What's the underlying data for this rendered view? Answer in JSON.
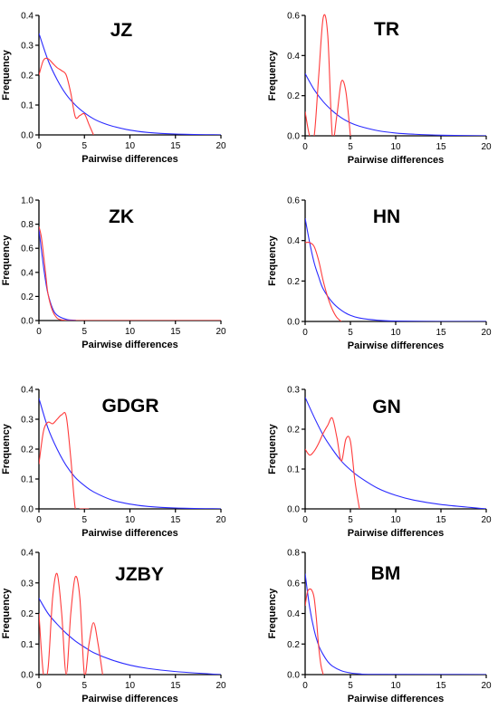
{
  "chart_data": [
    {
      "type": "line",
      "title": "JZ",
      "xlabel": "Pairwise differences",
      "ylabel": "Frequency",
      "xlim": [
        0,
        20
      ],
      "ylim": [
        0,
        0.4
      ],
      "x_ticks": [
        "0",
        "5",
        "10",
        "15",
        "20"
      ],
      "y_ticks": [
        "0.0",
        "0.1",
        "0.2",
        "0.3",
        "0.4"
      ],
      "series": [
        {
          "color": "#ff3b3b",
          "x": [
            0,
            0.5,
            1,
            1.5,
            2,
            2.5,
            3,
            3.5,
            4,
            4.5,
            5,
            5.5,
            6
          ],
          "y": [
            0.2,
            0.25,
            0.255,
            0.24,
            0.225,
            0.215,
            0.2,
            0.14,
            0.06,
            0.065,
            0.07,
            0.035,
            0.0
          ]
        },
        {
          "color": "#2b2bff",
          "x": [
            0,
            1,
            2,
            3,
            4,
            5,
            6,
            7,
            8,
            10,
            12,
            15,
            20
          ],
          "y": [
            0.34,
            0.25,
            0.185,
            0.135,
            0.1,
            0.074,
            0.054,
            0.04,
            0.03,
            0.016,
            0.008,
            0.003,
            0.0
          ]
        }
      ]
    },
    {
      "type": "line",
      "title": "TR",
      "xlabel": "Pairwise differences",
      "ylabel": "Frequency",
      "xlim": [
        0,
        20
      ],
      "ylim": [
        0,
        0.6
      ],
      "x_ticks": [
        "0",
        "5",
        "10",
        "15",
        "20"
      ],
      "y_ticks": [
        "0.0",
        "0.2",
        "0.4",
        "0.6"
      ],
      "series": [
        {
          "color": "#ff3b3b",
          "x": [
            0,
            0.5,
            1,
            1.5,
            2,
            2.5,
            3,
            3.5,
            4,
            4.5,
            5
          ],
          "y": [
            0.12,
            0.0,
            0.0,
            0.3,
            0.59,
            0.5,
            0.0,
            0.1,
            0.27,
            0.22,
            0.0
          ]
        },
        {
          "color": "#2b2bff",
          "x": [
            0,
            1,
            2,
            3,
            4,
            5,
            6,
            8,
            10,
            12,
            15,
            20
          ],
          "y": [
            0.31,
            0.23,
            0.17,
            0.125,
            0.09,
            0.065,
            0.048,
            0.026,
            0.014,
            0.008,
            0.003,
            0.0
          ]
        }
      ]
    },
    {
      "type": "line",
      "title": "ZK",
      "xlabel": "Pairwise differences",
      "ylabel": "Frequency",
      "xlim": [
        0,
        20
      ],
      "ylim": [
        0,
        1.0
      ],
      "x_ticks": [
        "0",
        "5",
        "10",
        "15",
        "20"
      ],
      "y_ticks": [
        "0.0",
        "0.2",
        "0.4",
        "0.6",
        "0.8",
        "1.0"
      ],
      "series": [
        {
          "color": "#ff3b3b",
          "x": [
            0,
            0.25,
            0.5,
            0.75,
            1,
            1.5,
            2,
            2.5,
            3,
            4,
            20
          ],
          "y": [
            0.78,
            0.7,
            0.55,
            0.38,
            0.22,
            0.08,
            0.02,
            0.005,
            0.0,
            0.0,
            0.0
          ]
        },
        {
          "color": "#2b2bff",
          "x": [
            0,
            0.25,
            0.5,
            0.75,
            1,
            1.5,
            2,
            3,
            4,
            5,
            20
          ],
          "y": [
            0.76,
            0.6,
            0.45,
            0.32,
            0.22,
            0.1,
            0.045,
            0.01,
            0.002,
            0.0,
            0.0
          ]
        }
      ]
    },
    {
      "type": "line",
      "title": "HN",
      "xlabel": "Pairwise differences",
      "ylabel": "Frequency",
      "xlim": [
        0,
        20
      ],
      "ylim": [
        0,
        0.6
      ],
      "x_ticks": [
        "0",
        "5",
        "10",
        "15",
        "20"
      ],
      "y_ticks": [
        "0.0",
        "0.2",
        "0.4",
        "0.6"
      ],
      "series": [
        {
          "color": "#ff3b3b",
          "x": [
            0,
            0.5,
            1,
            1.5,
            2,
            2.5,
            3,
            3.5,
            4
          ],
          "y": [
            0.39,
            0.39,
            0.37,
            0.3,
            0.2,
            0.12,
            0.06,
            0.02,
            0.0
          ]
        },
        {
          "color": "#2b2bff",
          "x": [
            0,
            0.5,
            1,
            1.5,
            2,
            3,
            4,
            5,
            6,
            8,
            10,
            15,
            20
          ],
          "y": [
            0.51,
            0.39,
            0.29,
            0.22,
            0.16,
            0.095,
            0.055,
            0.03,
            0.017,
            0.006,
            0.002,
            0.0,
            0.0
          ]
        }
      ]
    },
    {
      "type": "line",
      "title": "GDGR",
      "xlabel": "Pairwise differences",
      "ylabel": "Frequency",
      "xlim": [
        0,
        20
      ],
      "ylim": [
        0,
        0.4
      ],
      "x_ticks": [
        "0",
        "5",
        "10",
        "15",
        "20"
      ],
      "y_ticks": [
        "0.0",
        "0.1",
        "0.2",
        "0.3",
        "0.4"
      ],
      "series": [
        {
          "color": "#ff3b3b",
          "x": [
            0,
            0.5,
            1,
            1.5,
            2,
            2.5,
            3,
            3.5,
            4,
            4.5,
            5,
            5.5
          ],
          "y": [
            0.15,
            0.26,
            0.29,
            0.285,
            0.3,
            0.315,
            0.31,
            0.17,
            0.0,
            0.0,
            0.0,
            0.0
          ]
        },
        {
          "color": "#2b2bff",
          "x": [
            0,
            1,
            2,
            3,
            4,
            5,
            6,
            8,
            10,
            12,
            15,
            20
          ],
          "y": [
            0.37,
            0.27,
            0.2,
            0.145,
            0.105,
            0.078,
            0.057,
            0.03,
            0.016,
            0.008,
            0.003,
            0.0
          ]
        }
      ]
    },
    {
      "type": "line",
      "title": "GN",
      "xlabel": "Pairwise differences",
      "ylabel": "Frequency",
      "xlim": [
        0,
        20
      ],
      "ylim": [
        0,
        0.3
      ],
      "x_ticks": [
        "0",
        "5",
        "10",
        "15",
        "20"
      ],
      "y_ticks": [
        "0.0",
        "0.1",
        "0.2",
        "0.3"
      ],
      "series": [
        {
          "color": "#ff3b3b",
          "x": [
            0,
            0.5,
            1,
            1.5,
            2,
            2.5,
            3,
            3.5,
            4,
            4.5,
            5,
            5.5,
            6
          ],
          "y": [
            0.15,
            0.135,
            0.145,
            0.165,
            0.19,
            0.21,
            0.228,
            0.18,
            0.12,
            0.175,
            0.17,
            0.07,
            0.0
          ]
        },
        {
          "color": "#2b2bff",
          "x": [
            0,
            1,
            2,
            3,
            4,
            5,
            6,
            8,
            10,
            12,
            15,
            20
          ],
          "y": [
            0.28,
            0.23,
            0.185,
            0.15,
            0.12,
            0.098,
            0.08,
            0.052,
            0.034,
            0.022,
            0.011,
            0.0
          ]
        }
      ]
    },
    {
      "type": "line",
      "title": "JZBY",
      "xlabel": "Pairwise differences",
      "ylabel": "Frequency",
      "xlim": [
        0,
        20
      ],
      "ylim": [
        0,
        0.4
      ],
      "x_ticks": [
        "0",
        "5",
        "10",
        "15",
        "20"
      ],
      "y_ticks": [
        "0.0",
        "0.1",
        "0.2",
        "0.3",
        "0.4"
      ],
      "series": [
        {
          "color": "#ff3b3b",
          "x": [
            0,
            0.5,
            1,
            1.5,
            2,
            2.5,
            3,
            3.5,
            4,
            4.5,
            5,
            5.5,
            6,
            6.5,
            7
          ],
          "y": [
            0.2,
            0.0,
            0.02,
            0.25,
            0.33,
            0.2,
            0.0,
            0.2,
            0.32,
            0.25,
            0.0,
            0.1,
            0.17,
            0.1,
            0.0
          ]
        },
        {
          "color": "#2b2bff",
          "x": [
            0,
            1,
            2,
            3,
            4,
            5,
            6,
            8,
            10,
            12,
            15,
            20
          ],
          "y": [
            0.25,
            0.2,
            0.165,
            0.135,
            0.11,
            0.09,
            0.072,
            0.048,
            0.031,
            0.02,
            0.01,
            0.0
          ]
        }
      ]
    },
    {
      "type": "line",
      "title": "BM",
      "xlabel": "Pairwise differences",
      "ylabel": "Frequency",
      "xlim": [
        0,
        20
      ],
      "ylim": [
        0,
        0.8
      ],
      "x_ticks": [
        "0",
        "5",
        "10",
        "15",
        "20"
      ],
      "y_ticks": [
        "0.0",
        "0.2",
        "0.4",
        "0.6",
        "0.8"
      ],
      "series": [
        {
          "color": "#ff3b3b",
          "x": [
            0,
            0.25,
            0.5,
            0.75,
            1,
            1.25,
            1.5,
            1.75,
            2
          ],
          "y": [
            0.45,
            0.54,
            0.56,
            0.55,
            0.5,
            0.36,
            0.18,
            0.06,
            0.0
          ]
        },
        {
          "color": "#2b2bff",
          "x": [
            0,
            0.5,
            1,
            1.5,
            2,
            2.5,
            3,
            4,
            5,
            6,
            8,
            20
          ],
          "y": [
            0.66,
            0.44,
            0.29,
            0.19,
            0.13,
            0.085,
            0.056,
            0.025,
            0.011,
            0.005,
            0.001,
            0.0
          ]
        }
      ]
    }
  ]
}
